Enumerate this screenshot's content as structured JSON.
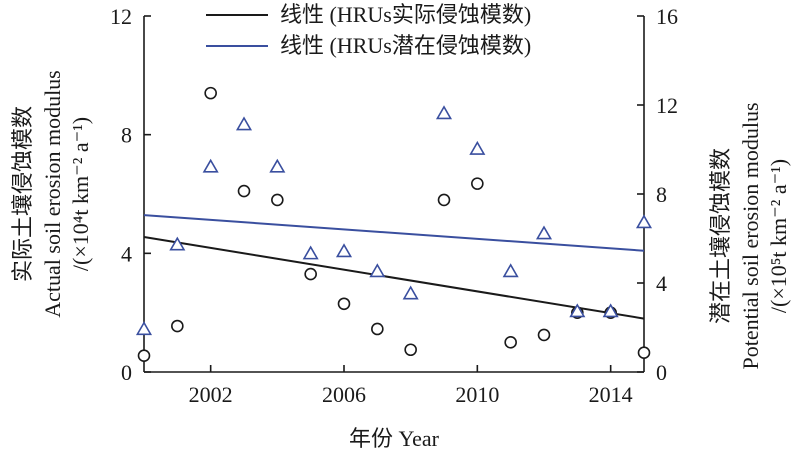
{
  "chart_data": {
    "type": "scatter",
    "x_axis": {
      "label": "年份 Year",
      "range": [
        2000,
        2015
      ],
      "ticks": [
        2002,
        2006,
        2010,
        2014
      ]
    },
    "y_axis_left": {
      "label_cn": "实际土壤侵蚀模数",
      "label_en": "Actual soil erosion modulus",
      "label_unit": "/(×10⁴t km⁻² a⁻¹)",
      "range": [
        0,
        12
      ],
      "ticks": [
        0,
        4,
        8,
        12
      ]
    },
    "y_axis_right": {
      "label_cn": "潜在土壤侵蚀模数",
      "label_en": "Potential soil erosion modulus",
      "label_unit": "/(×10⁵t km⁻² a⁻¹)",
      "range": [
        0,
        16
      ],
      "ticks": [
        0,
        4,
        8,
        12,
        16
      ]
    },
    "legend": {
      "position": "top-center",
      "items": [
        {
          "label": "线性 (HRUs实际侵蚀模数)",
          "color": "#1a1a1a"
        },
        {
          "label": "线性 (HRUs潜在侵蚀模数)",
          "color": "#3a4f9f"
        }
      ]
    },
    "series": [
      {
        "axis": "left",
        "marker": "circle",
        "color": "#1a1a1a",
        "x": [
          2000,
          2001,
          2002,
          2003,
          2004,
          2005,
          2006,
          2007,
          2008,
          2009,
          2010,
          2011,
          2012,
          2013,
          2014,
          2015
        ],
        "y": [
          0.55,
          1.55,
          9.4,
          6.1,
          5.8,
          3.3,
          2.3,
          1.45,
          0.75,
          5.8,
          6.35,
          1.0,
          1.25,
          2.0,
          2.0,
          0.65
        ]
      },
      {
        "axis": "right",
        "marker": "triangle",
        "color": "#3a4f9f",
        "x": [
          2000,
          2001,
          2002,
          2003,
          2004,
          2005,
          2006,
          2007,
          2008,
          2009,
          2010,
          2011,
          2012,
          2013,
          2014,
          2015
        ],
        "y": [
          1.9,
          5.7,
          9.2,
          11.1,
          9.2,
          5.3,
          5.4,
          4.5,
          3.5,
          11.6,
          10.0,
          4.5,
          6.2,
          2.7,
          2.7,
          6.7
        ]
      }
    ],
    "trendlines": [
      {
        "axis": "left",
        "color": "#1a1a1a",
        "x": [
          2000,
          2015
        ],
        "y": [
          4.55,
          1.8
        ]
      },
      {
        "axis": "right",
        "color": "#3a4f9f",
        "x": [
          2000,
          2015
        ],
        "y": [
          7.05,
          5.45
        ]
      }
    ],
    "grid": false
  }
}
